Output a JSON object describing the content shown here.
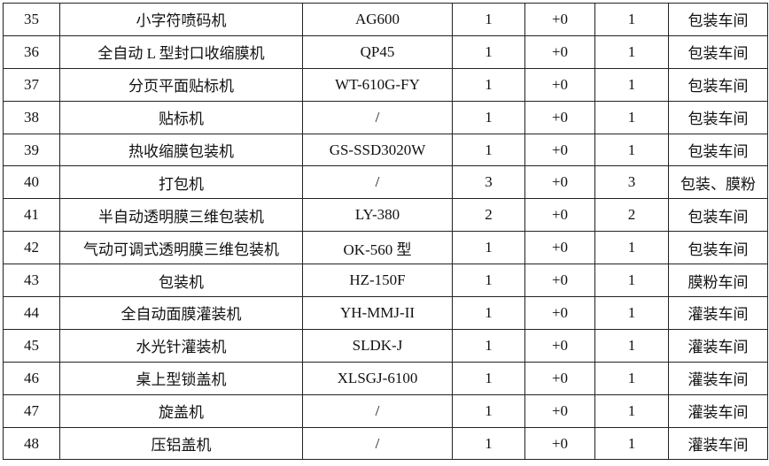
{
  "rows": [
    [
      "35",
      "小字符喷码机",
      "AG600",
      "1",
      "+0",
      "1",
      "包装车间"
    ],
    [
      "36",
      "全自动 L 型封口收缩膜机",
      "QP45",
      "1",
      "+0",
      "1",
      "包装车间"
    ],
    [
      "37",
      "分页平面贴标机",
      "WT-610G-FY",
      "1",
      "+0",
      "1",
      "包装车间"
    ],
    [
      "38",
      "贴标机",
      "/",
      "1",
      "+0",
      "1",
      "包装车间"
    ],
    [
      "39",
      "热收缩膜包装机",
      "GS-SSD3020W",
      "1",
      "+0",
      "1",
      "包装车间"
    ],
    [
      "40",
      "打包机",
      "/",
      "3",
      "+0",
      "3",
      "包装、膜粉"
    ],
    [
      "41",
      "半自动透明膜三维包装机",
      "LY-380",
      "2",
      "+0",
      "2",
      "包装车间"
    ],
    [
      "42",
      "气动可调式透明膜三维包装机",
      "OK-560 型",
      "1",
      "+0",
      "1",
      "包装车间"
    ],
    [
      "43",
      "包装机",
      "HZ-150F",
      "1",
      "+0",
      "1",
      "膜粉车间"
    ],
    [
      "44",
      "全自动面膜灌装机",
      "YH-MMJ-II",
      "1",
      "+0",
      "1",
      "灌装车间"
    ],
    [
      "45",
      "水光针灌装机",
      "SLDK-J",
      "1",
      "+0",
      "1",
      "灌装车间"
    ],
    [
      "46",
      "桌上型锁盖机",
      "XLSGJ-6100",
      "1",
      "+0",
      "1",
      "灌装车间"
    ],
    [
      "47",
      "旋盖机",
      "/",
      "1",
      "+0",
      "1",
      "灌装车间"
    ],
    [
      "48",
      "压铝盖机",
      "/",
      "1",
      "+0",
      "1",
      "灌装车间"
    ]
  ]
}
